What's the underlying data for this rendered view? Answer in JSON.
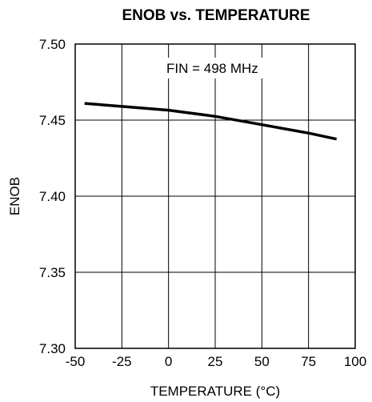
{
  "chart_data": {
    "type": "line",
    "title": "ENOB vs. TEMPERATURE",
    "xlabel": "TEMPERATURE (°C)",
    "ylabel": "ENOB",
    "xlim": [
      -50,
      100
    ],
    "ylim": [
      7.3,
      7.5
    ],
    "x_ticks": [
      -50,
      -25,
      0,
      25,
      50,
      75,
      100
    ],
    "x_tick_labels": [
      "-50",
      "-25",
      "0",
      "25",
      "50",
      "75",
      "100"
    ],
    "y_ticks": [
      7.3,
      7.35,
      7.4,
      7.45,
      7.5
    ],
    "y_tick_labels": [
      "7.30",
      "7.35",
      "7.40",
      "7.45",
      "7.50"
    ],
    "grid": true,
    "annotations": [
      {
        "text": "FIN = 498 MHz"
      }
    ],
    "series": [
      {
        "x": [
          -45,
          -25,
          0,
          25,
          50,
          75,
          90
        ],
        "y": [
          7.461,
          7.459,
          7.4565,
          7.4525,
          7.447,
          7.4415,
          7.4375
        ],
        "color": "#000000"
      }
    ]
  }
}
